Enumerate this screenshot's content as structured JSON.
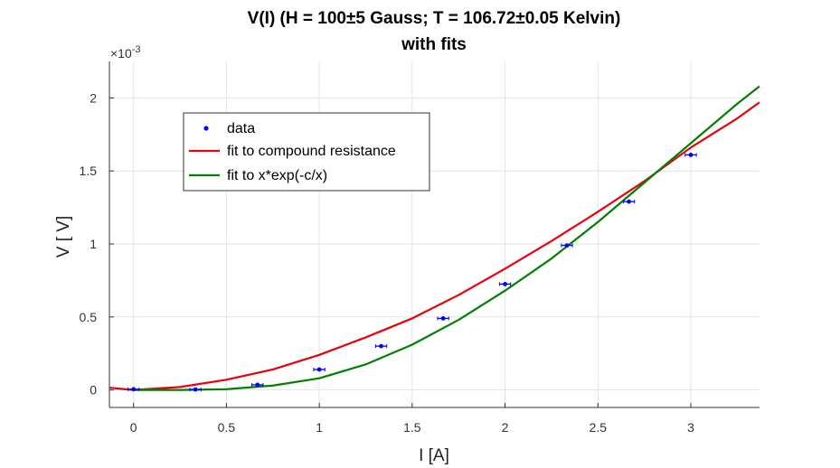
{
  "chart_data": {
    "type": "scatter",
    "title_line1": "V(I) (H = 100±5 Gauss; T = 106.72±0.05 Kelvin)",
    "title_line2": "with fits",
    "xlabel": "I [A]",
    "ylabel": "V [ V]",
    "y_exponent_label": "×10",
    "y_exponent_power": "-3",
    "xlim": [
      -0.13,
      3.37
    ],
    "ylim": [
      -0.00012,
      0.00225
    ],
    "xticks": [
      0,
      0.5,
      1,
      1.5,
      2,
      2.5,
      3
    ],
    "xtick_labels": [
      "0",
      "0.5",
      "1",
      "1.5",
      "2",
      "2.5",
      "3"
    ],
    "yticks": [
      0,
      0.0005,
      0.001,
      0.0015,
      0.002
    ],
    "ytick_labels": [
      "0",
      "0.5",
      "1",
      "1.5",
      "2"
    ],
    "grid": true,
    "legend_position": "upper-left",
    "series": [
      {
        "name": "data",
        "kind": "points",
        "color": "#0000ff",
        "x": [
          0,
          0.333,
          0.667,
          1.0,
          1.333,
          1.667,
          2.0,
          2.333,
          2.667,
          3.0
        ],
        "y": [
          5e-06,
          3e-06,
          3.5e-05,
          0.00014,
          0.0003,
          0.00049,
          0.000725,
          0.00099,
          0.00129,
          0.00161
        ],
        "xerr": 0.03
      },
      {
        "name": "fit to compound resistance",
        "kind": "line",
        "color": "#e8000b",
        "x": [
          -0.13,
          0,
          0.25,
          0.5,
          0.75,
          1.0,
          1.25,
          1.5,
          1.75,
          2.0,
          2.25,
          2.5,
          2.75,
          3.0,
          3.25,
          3.37
        ],
        "y": [
          1.5e-05,
          0.0,
          2e-05,
          7e-05,
          0.00014,
          0.00024,
          0.00036,
          0.00049,
          0.00065,
          0.00083,
          0.00102,
          0.00122,
          0.00143,
          0.00166,
          0.00186,
          0.00197
        ]
      },
      {
        "name": "fit to x*exp(-c/x)",
        "kind": "line",
        "color": "#008000",
        "x": [
          0,
          0.25,
          0.5,
          0.75,
          1.0,
          1.25,
          1.5,
          1.75,
          2.0,
          2.25,
          2.5,
          2.75,
          3.0,
          3.25,
          3.37
        ],
        "y": [
          0.0,
          0.0,
          5e-06,
          3e-05,
          8e-05,
          0.000175,
          0.00031,
          0.00048,
          0.00068,
          0.0009,
          0.00115,
          0.00142,
          0.00169,
          0.00196,
          0.00208
        ]
      }
    ]
  }
}
